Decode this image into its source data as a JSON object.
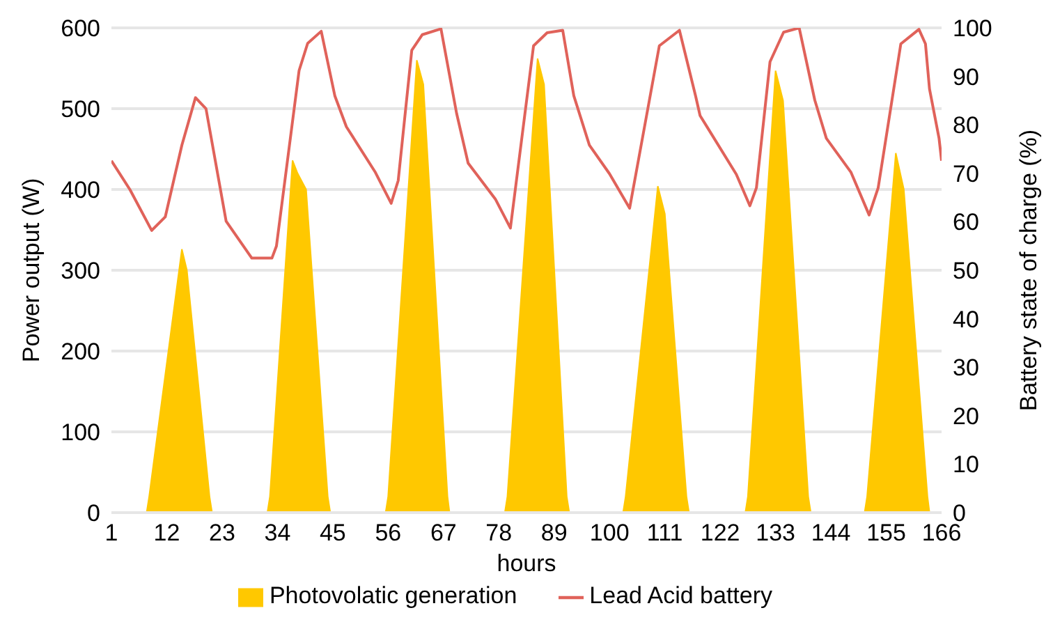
{
  "chart_data": {
    "type": "area",
    "xlabel": "hours",
    "ylabel": "Power output (W)",
    "y2label": "Battery state of charge (%)",
    "xlim": [
      1,
      166
    ],
    "xticks": [
      1,
      12,
      23,
      34,
      45,
      56,
      67,
      78,
      89,
      100,
      111,
      122,
      133,
      144,
      155,
      166
    ],
    "ylim": [
      0,
      600
    ],
    "yticks": [
      0,
      100,
      200,
      300,
      400,
      500,
      600
    ],
    "y2lim": [
      0,
      100
    ],
    "y2ticks": [
      0,
      10,
      20,
      30,
      40,
      50,
      60,
      70,
      80,
      90,
      100
    ],
    "grid": "y",
    "legend": "bottom",
    "series": [
      {
        "name": "Photovolatic generation",
        "color": "#ffc800",
        "x": [
          8,
          8.5,
          15,
          16,
          20.5,
          21,
          32,
          32.5,
          37,
          38,
          39.7,
          44,
          44.5,
          55.5,
          56,
          61.7,
          63,
          67.8,
          68.2,
          79.2,
          79.7,
          85.7,
          87,
          91.5,
          92,
          102.7,
          103.2,
          109.6,
          111,
          115.3,
          115.8,
          127,
          127.5,
          133,
          134.5,
          139.5,
          140,
          150.7,
          151.2,
          156.9,
          158.5,
          163.2,
          163.6
        ],
        "values": [
          0,
          20,
          326,
          300,
          20,
          0,
          0,
          20,
          436,
          420,
          400,
          20,
          0,
          0,
          20,
          560,
          530,
          20,
          0,
          0,
          20,
          562,
          530,
          20,
          0,
          0,
          20,
          404,
          370,
          20,
          0,
          0,
          20,
          547,
          510,
          20,
          0,
          0,
          20,
          445,
          400,
          20,
          0
        ]
      },
      {
        "name": "Lead Acid battery",
        "type": "line",
        "axis": "y2",
        "color": "#e0625a",
        "x": [
          1,
          4.7,
          9,
          11.7,
          15,
          17.7,
          19.8,
          23.8,
          28.9,
          32.9,
          33.8,
          38.3,
          40,
          42.7,
          45.4,
          47.7,
          53.4,
          56.6,
          58,
          60.7,
          62.8,
          66.5,
          69.6,
          71.9,
          77.3,
          80.3,
          84.9,
          87.6,
          90.7,
          92.9,
          96,
          100,
          104,
          109.9,
          113.9,
          117.1,
          118,
          125.2,
          127.9,
          129.2,
          131.9,
          134.6,
          137.7,
          140.8,
          143.1,
          148,
          151.6,
          153.4,
          157.9,
          161.5,
          162.8,
          163.6,
          165.5,
          166
        ],
        "values": [
          72.6,
          66.6,
          58.2,
          61,
          75.8,
          85.6,
          83.3,
          60.1,
          52.5,
          52.5,
          55,
          91.2,
          96.8,
          99.3,
          86,
          79.6,
          70.3,
          63.8,
          68.5,
          95.4,
          98.6,
          99.8,
          82.4,
          72.1,
          64.7,
          58.7,
          96.3,
          99,
          99.5,
          86,
          75.8,
          69.9,
          62.8,
          96.3,
          99.5,
          86,
          81.9,
          69.8,
          63.3,
          67,
          93,
          99.1,
          100,
          85.1,
          77.2,
          70.2,
          61.4,
          67,
          96.7,
          99.7,
          96.7,
          87.4,
          77.2,
          72.6
        ]
      }
    ]
  }
}
